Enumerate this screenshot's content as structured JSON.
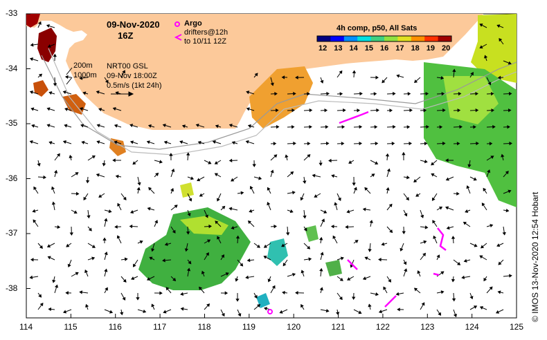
{
  "title": {
    "date": "09-Nov-2020",
    "hour": "16Z"
  },
  "legend": {
    "argo_label": "Argo",
    "drifters_label": "drifters@12h",
    "drifters_sub": "to 10/11 12Z",
    "product_label": "4h comp, p50, All Sats",
    "depth_200": "200m",
    "depth_1000": "1000m",
    "nrt_label": "NRT00 GSL",
    "nrt_time": "09-Nov 18:00Z",
    "speed_label": "0.5m/s (1kt 24h)"
  },
  "colorbar": {
    "ticks": [
      "12",
      "13",
      "14",
      "15",
      "16",
      "17",
      "18",
      "19",
      "20"
    ],
    "colors": [
      "#000080",
      "#0000ff",
      "#0090ff",
      "#00e0e0",
      "#40d080",
      "#90e040",
      "#e0e020",
      "#ff9000",
      "#ff3000",
      "#a00000"
    ]
  },
  "axes": {
    "lat_ticks": [
      "-33",
      "-34",
      "-35",
      "-36",
      "-37",
      "-38"
    ],
    "lon_ticks": [
      "114",
      "115",
      "116",
      "117",
      "118",
      "119",
      "120",
      "121",
      "122",
      "123",
      "124",
      "125"
    ]
  },
  "credit": "© IMOS 13-Nov-2020 12:54 Hobart",
  "colors": {
    "land": "#fcc99a",
    "ocean": "#ffffff",
    "argo": "#ff00ff",
    "drifter": "#ff00ff"
  }
}
